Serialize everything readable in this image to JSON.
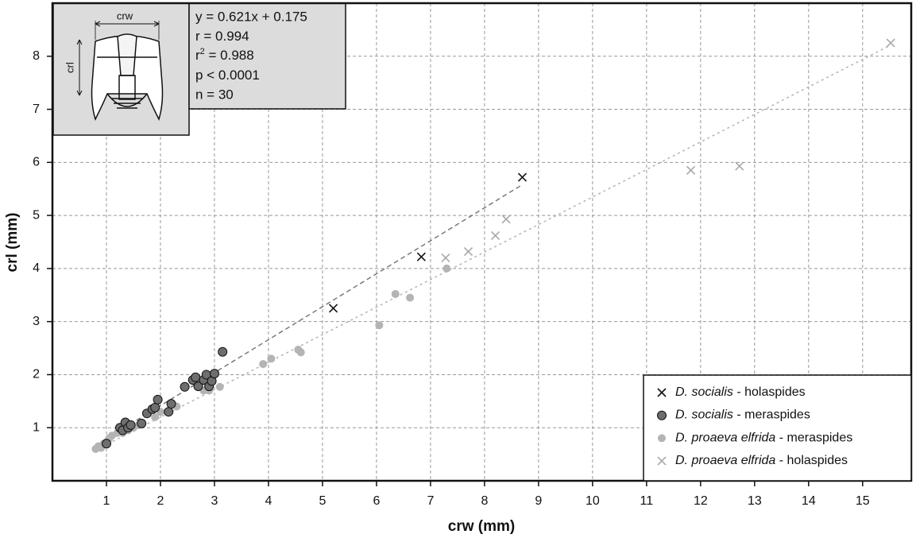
{
  "chart_data": {
    "type": "scatter",
    "x_label": "crw (mm)",
    "y_label": "crl (mm)",
    "xlim": [
      0,
      15.9
    ],
    "ylim": [
      0,
      9
    ],
    "xticks": [
      1,
      2,
      3,
      4,
      5,
      6,
      7,
      8,
      9,
      10,
      11,
      12,
      13,
      14,
      15
    ],
    "yticks": [
      1,
      2,
      3,
      4,
      5,
      6,
      7,
      8
    ],
    "grid": true,
    "legend": "lower right",
    "inset_labels": {
      "width": "crw",
      "length": "crl"
    },
    "stats": [
      "y = 0.621x + 0.175",
      "r = 0.994",
      {
        "base": "r",
        "sup": "2",
        "rest": " = 0.988"
      },
      "p < 0.0001",
      "n = 30"
    ],
    "series": [
      {
        "name": "D. socialis - holaspides",
        "marker": "x",
        "color": "#111111",
        "x": [
          5.2,
          6.83,
          8.7
        ],
        "values": [
          3.25,
          4.22,
          5.72
        ]
      },
      {
        "name": "D. socialis - meraspides",
        "marker": "circle",
        "color": "#6e6e6e",
        "x": [
          1.0,
          1.25,
          1.3,
          1.35,
          1.4,
          1.45,
          1.65,
          1.75,
          1.85,
          1.9,
          1.95,
          2.15,
          2.2,
          2.45,
          2.6,
          2.65,
          2.7,
          2.8,
          2.85,
          2.9,
          2.95,
          3.0,
          3.15
        ],
        "values": [
          0.7,
          1.0,
          0.95,
          1.1,
          1.0,
          1.05,
          1.08,
          1.27,
          1.35,
          1.38,
          1.53,
          1.3,
          1.45,
          1.77,
          1.9,
          1.95,
          1.78,
          1.9,
          2.0,
          1.78,
          1.88,
          2.02,
          2.43
        ]
      },
      {
        "name": "D. proaeva elfrida - meraspides",
        "marker": "circle",
        "color": "#b4b4b4",
        "x": [
          0.8,
          0.85,
          0.9,
          0.95,
          1.05,
          1.1,
          1.2,
          1.3,
          1.4,
          1.5,
          1.6,
          1.9,
          2.0,
          2.3,
          2.8,
          2.9,
          3.1,
          3.9,
          4.05,
          4.55,
          4.6,
          6.05,
          6.35,
          6.62,
          7.3
        ],
        "values": [
          0.6,
          0.65,
          0.62,
          0.7,
          0.8,
          0.85,
          0.9,
          0.9,
          0.95,
          1.0,
          1.05,
          1.2,
          1.3,
          1.4,
          1.7,
          1.7,
          1.77,
          2.2,
          2.3,
          2.47,
          2.42,
          2.93,
          3.52,
          3.45,
          4.0
        ]
      },
      {
        "name": "D. proaeva elfrida - holaspides",
        "marker": "x",
        "color": "#a8a8a8",
        "x": [
          7.28,
          7.7,
          8.2,
          8.4,
          11.82,
          12.72,
          15.52
        ],
        "values": [
          4.2,
          4.32,
          4.62,
          4.93,
          5.85,
          5.93,
          8.25
        ]
      }
    ],
    "trend_lines": [
      {
        "color": "#7a7a7a",
        "x": [
          0.8,
          8.7
        ],
        "values": [
          0.67,
          5.58
        ]
      },
      {
        "color": "#b4b4b4",
        "x": [
          0.75,
          15.5
        ],
        "values": [
          0.55,
          8.2
        ]
      }
    ]
  }
}
